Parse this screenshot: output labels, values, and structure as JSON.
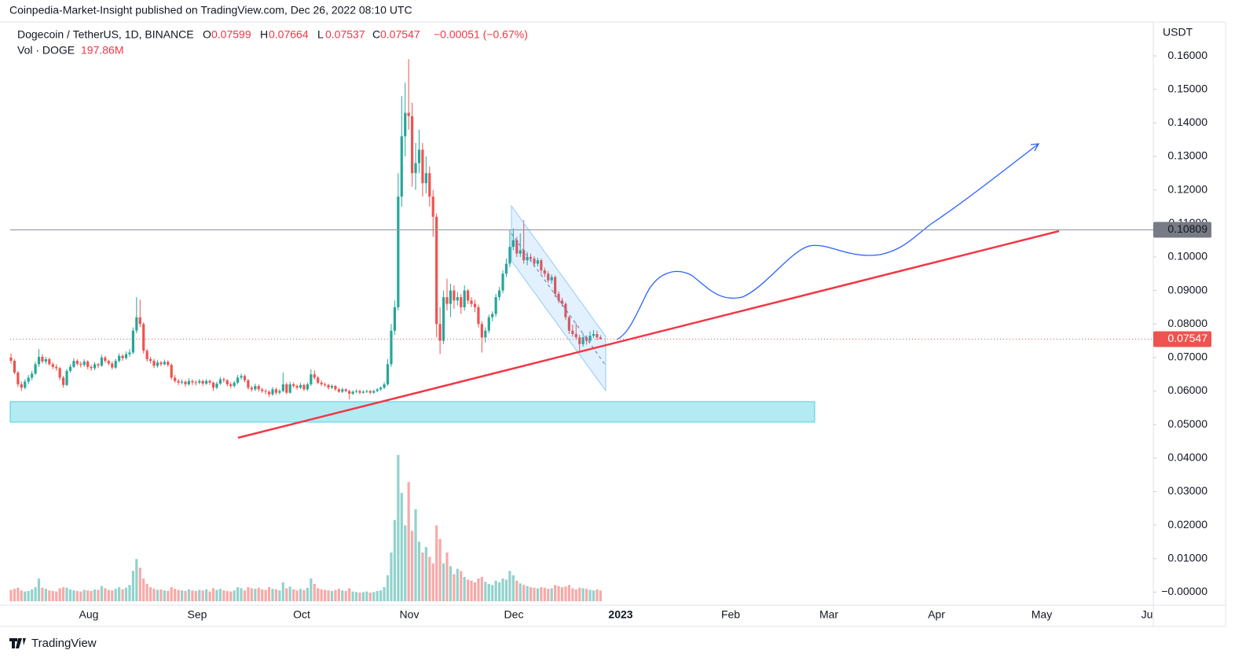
{
  "header": {
    "publisher": "Coinpedia-Market-Insight published on TradingView.com, Dec 26, 2022 08:10 UTC",
    "footer": "TradingView"
  },
  "chart_data": {
    "type": "candlestick",
    "symbol": "Dogecoin / TetherUS, 1D, BINANCE",
    "open_label": "O",
    "high_label": "H",
    "low_label": "L",
    "close_label": "C",
    "change": "−0.00051 (−0.67%)",
    "volume_name": "Vol · DOGE",
    "volume_label": "197.86M",
    "y_unit": "USDT",
    "xtick_labels": [
      "Aug",
      "Sep",
      "Oct",
      "Nov",
      "Dec",
      "2023",
      "Feb",
      "Mar",
      "Apr",
      "May",
      "Ju"
    ],
    "ylim": [
      -0.0039,
      0.1701
    ],
    "yticks": [
      {
        "value": 0,
        "label": "−0.00000"
      },
      {
        "value": 0.01,
        "label": "0.01000"
      },
      {
        "value": 0.02,
        "label": "0.02000"
      },
      {
        "value": 0.03,
        "label": "0.03000"
      },
      {
        "value": 0.04,
        "label": "0.04000"
      },
      {
        "value": 0.05,
        "label": "0.05000"
      },
      {
        "value": 0.06,
        "label": "0.06000"
      },
      {
        "value": 0.07,
        "label": "0.07000"
      },
      {
        "value": 0.08,
        "label": "0.08000"
      },
      {
        "value": 0.09,
        "label": "0.09000"
      },
      {
        "value": 0.1,
        "label": "0.10000"
      },
      {
        "value": 0.11,
        "label": "0.11000"
      },
      {
        "value": 0.12,
        "label": "0.12000"
      },
      {
        "value": 0.13,
        "label": "0.13000"
      },
      {
        "value": 0.14,
        "label": "0.14000"
      },
      {
        "value": 0.15,
        "label": "0.15000"
      },
      {
        "value": 0.16,
        "label": "0.16000"
      }
    ],
    "horizontal_line": 0.10809,
    "up_color": "#26a69a",
    "down_color": "#ef5350",
    "volume_lim": [
      0,
      2800
    ],
    "ohlc": [
      [
        0.07,
        0.0712,
        0.0682,
        0.069
      ],
      [
        0.069,
        0.0695,
        0.065,
        0.0655
      ],
      [
        0.0655,
        0.066,
        0.0612,
        0.062
      ],
      [
        0.062,
        0.0628,
        0.06,
        0.061
      ],
      [
        0.061,
        0.0635,
        0.0605,
        0.0628
      ],
      [
        0.0628,
        0.0648,
        0.062,
        0.064
      ],
      [
        0.064,
        0.066,
        0.0632,
        0.0652
      ],
      [
        0.0652,
        0.0688,
        0.0648,
        0.068
      ],
      [
        0.068,
        0.0725,
        0.0672,
        0.0702
      ],
      [
        0.0702,
        0.071,
        0.0682,
        0.0688
      ],
      [
        0.0688,
        0.0702,
        0.068,
        0.0695
      ],
      [
        0.0695,
        0.07,
        0.0675,
        0.068
      ],
      [
        0.068,
        0.0686,
        0.0665,
        0.0672
      ],
      [
        0.0672,
        0.068,
        0.066,
        0.0668
      ],
      [
        0.0668,
        0.0672,
        0.0632,
        0.064
      ],
      [
        0.064,
        0.0645,
        0.061,
        0.0618
      ],
      [
        0.0618,
        0.0666,
        0.0615,
        0.066
      ],
      [
        0.066,
        0.068,
        0.0655,
        0.0672
      ],
      [
        0.0672,
        0.0698,
        0.0668,
        0.069
      ],
      [
        0.069,
        0.0695,
        0.0675,
        0.0681
      ],
      [
        0.0681,
        0.0688,
        0.067,
        0.0678
      ],
      [
        0.0678,
        0.0695,
        0.0672,
        0.0688
      ],
      [
        0.0688,
        0.0692,
        0.0665,
        0.0672
      ],
      [
        0.0672,
        0.0678,
        0.066,
        0.0668
      ],
      [
        0.0668,
        0.0686,
        0.0662,
        0.068
      ],
      [
        0.068,
        0.0684,
        0.0668,
        0.0676
      ],
      [
        0.0676,
        0.0708,
        0.0672,
        0.07
      ],
      [
        0.07,
        0.0705,
        0.0684,
        0.069
      ],
      [
        0.069,
        0.0694,
        0.0676,
        0.0682
      ],
      [
        0.0682,
        0.0688,
        0.0664,
        0.067
      ],
      [
        0.067,
        0.0696,
        0.0666,
        0.069
      ],
      [
        0.069,
        0.0712,
        0.0685,
        0.0705
      ],
      [
        0.0705,
        0.071,
        0.069,
        0.0698
      ],
      [
        0.0698,
        0.0718,
        0.0694,
        0.071
      ],
      [
        0.071,
        0.0725,
        0.0702,
        0.0715
      ],
      [
        0.0715,
        0.079,
        0.071,
        0.078
      ],
      [
        0.078,
        0.088,
        0.0772,
        0.082
      ],
      [
        0.082,
        0.0872,
        0.079,
        0.08
      ],
      [
        0.08,
        0.0805,
        0.0712,
        0.072
      ],
      [
        0.072,
        0.0726,
        0.0688,
        0.0695
      ],
      [
        0.0695,
        0.0702,
        0.0682,
        0.069
      ],
      [
        0.069,
        0.0696,
        0.0668,
        0.0675
      ],
      [
        0.0675,
        0.0692,
        0.067,
        0.0685
      ],
      [
        0.0685,
        0.069,
        0.0674,
        0.068
      ],
      [
        0.068,
        0.0694,
        0.0676,
        0.0687
      ],
      [
        0.0687,
        0.0692,
        0.0672,
        0.0678
      ],
      [
        0.0678,
        0.0682,
        0.0634,
        0.064
      ],
      [
        0.064,
        0.0648,
        0.0624,
        0.063
      ],
      [
        0.063,
        0.0636,
        0.0618,
        0.0625
      ],
      [
        0.0625,
        0.0635,
        0.062,
        0.0628
      ],
      [
        0.0628,
        0.0632,
        0.0612,
        0.062
      ],
      [
        0.062,
        0.0638,
        0.0616,
        0.063
      ],
      [
        0.063,
        0.0634,
        0.0618,
        0.0626
      ],
      [
        0.0626,
        0.0632,
        0.0616,
        0.0625
      ],
      [
        0.0625,
        0.0636,
        0.062,
        0.063
      ],
      [
        0.063,
        0.0634,
        0.0615,
        0.0622
      ],
      [
        0.0622,
        0.0636,
        0.0618,
        0.063
      ],
      [
        0.063,
        0.0634,
        0.0618,
        0.0625
      ],
      [
        0.0625,
        0.0628,
        0.06,
        0.061
      ],
      [
        0.061,
        0.0628,
        0.0605,
        0.0622
      ],
      [
        0.0622,
        0.0642,
        0.0618,
        0.0635
      ],
      [
        0.0635,
        0.064,
        0.0625,
        0.0632
      ],
      [
        0.0632,
        0.0636,
        0.0614,
        0.062
      ],
      [
        0.062,
        0.0626,
        0.0608,
        0.0615
      ],
      [
        0.0615,
        0.063,
        0.061,
        0.0625
      ],
      [
        0.0625,
        0.0648,
        0.062,
        0.064
      ],
      [
        0.064,
        0.0652,
        0.0634,
        0.0645
      ],
      [
        0.0645,
        0.065,
        0.0626,
        0.0632
      ],
      [
        0.0632,
        0.0636,
        0.0604,
        0.061
      ],
      [
        0.061,
        0.0615,
        0.0598,
        0.0605
      ],
      [
        0.0605,
        0.0622,
        0.06,
        0.0615
      ],
      [
        0.0615,
        0.062,
        0.0598,
        0.0605
      ],
      [
        0.0605,
        0.061,
        0.0594,
        0.06
      ],
      [
        0.06,
        0.0606,
        0.059,
        0.0598
      ],
      [
        0.0598,
        0.0602,
        0.0582,
        0.059
      ],
      [
        0.059,
        0.0612,
        0.0586,
        0.0605
      ],
      [
        0.0605,
        0.061,
        0.0588,
        0.0595
      ],
      [
        0.0595,
        0.0606,
        0.059,
        0.06
      ],
      [
        0.06,
        0.0655,
        0.0596,
        0.062
      ],
      [
        0.062,
        0.0625,
        0.059,
        0.0595
      ],
      [
        0.0595,
        0.0628,
        0.0592,
        0.062
      ],
      [
        0.062,
        0.0626,
        0.061,
        0.0615
      ],
      [
        0.0615,
        0.062,
        0.0604,
        0.061
      ],
      [
        0.061,
        0.0624,
        0.0606,
        0.0618
      ],
      [
        0.0618,
        0.0622,
        0.06,
        0.0605
      ],
      [
        0.0605,
        0.0626,
        0.06,
        0.062
      ],
      [
        0.062,
        0.0665,
        0.0615,
        0.065
      ],
      [
        0.065,
        0.0662,
        0.0634,
        0.064
      ],
      [
        0.064,
        0.0645,
        0.062,
        0.0625
      ],
      [
        0.0625,
        0.0632,
        0.0615,
        0.062
      ],
      [
        0.062,
        0.0626,
        0.0612,
        0.0618
      ],
      [
        0.0618,
        0.0622,
        0.0604,
        0.061
      ],
      [
        0.061,
        0.062,
        0.0606,
        0.0615
      ],
      [
        0.0615,
        0.0618,
        0.06,
        0.0605
      ],
      [
        0.0605,
        0.061,
        0.0594,
        0.0598
      ],
      [
        0.0598,
        0.061,
        0.0594,
        0.0605
      ],
      [
        0.0605,
        0.0608,
        0.0596,
        0.06
      ],
      [
        0.06,
        0.0604,
        0.0575,
        0.0592
      ],
      [
        0.0592,
        0.0602,
        0.0588,
        0.0598
      ],
      [
        0.0598,
        0.0605,
        0.0594,
        0.06
      ],
      [
        0.06,
        0.0604,
        0.059,
        0.0595
      ],
      [
        0.0595,
        0.0602,
        0.0592,
        0.0598
      ],
      [
        0.0598,
        0.0604,
        0.0594,
        0.06
      ],
      [
        0.06,
        0.0603,
        0.059,
        0.0595
      ],
      [
        0.0595,
        0.0604,
        0.0592,
        0.06
      ],
      [
        0.06,
        0.0608,
        0.0596,
        0.0605
      ],
      [
        0.0605,
        0.0614,
        0.06,
        0.061
      ],
      [
        0.061,
        0.0626,
        0.0606,
        0.062
      ],
      [
        0.062,
        0.0695,
        0.0616,
        0.068
      ],
      [
        0.068,
        0.08,
        0.0672,
        0.078
      ],
      [
        0.078,
        0.087,
        0.0768,
        0.085
      ],
      [
        0.085,
        0.125,
        0.084,
        0.118
      ],
      [
        0.118,
        0.148,
        0.115,
        0.136
      ],
      [
        0.136,
        0.152,
        0.13,
        0.143
      ],
      [
        0.143,
        0.159,
        0.138,
        0.142
      ],
      [
        0.142,
        0.146,
        0.121,
        0.125
      ],
      [
        0.125,
        0.134,
        0.12,
        0.128
      ],
      [
        0.128,
        0.138,
        0.125,
        0.132
      ],
      [
        0.132,
        0.134,
        0.118,
        0.122
      ],
      [
        0.122,
        0.13,
        0.119,
        0.125
      ],
      [
        0.125,
        0.127,
        0.115,
        0.118
      ],
      [
        0.118,
        0.12,
        0.106,
        0.112
      ],
      [
        0.112,
        0.113,
        0.076,
        0.08
      ],
      [
        0.08,
        0.085,
        0.071,
        0.075
      ],
      [
        0.075,
        0.09,
        0.074,
        0.088
      ],
      [
        0.088,
        0.0935,
        0.084,
        0.086
      ],
      [
        0.086,
        0.092,
        0.082,
        0.09
      ],
      [
        0.09,
        0.0915,
        0.0845,
        0.087
      ],
      [
        0.087,
        0.0895,
        0.0855,
        0.088
      ],
      [
        0.088,
        0.089,
        0.083,
        0.085
      ],
      [
        0.085,
        0.0915,
        0.084,
        0.09
      ],
      [
        0.09,
        0.0905,
        0.086,
        0.087
      ],
      [
        0.087,
        0.088,
        0.085,
        0.086
      ],
      [
        0.086,
        0.0872,
        0.0835,
        0.085
      ],
      [
        0.085,
        0.0858,
        0.079,
        0.08
      ],
      [
        0.08,
        0.0808,
        0.0715,
        0.076
      ],
      [
        0.076,
        0.079,
        0.0745,
        0.078
      ],
      [
        0.078,
        0.0828,
        0.0772,
        0.082
      ],
      [
        0.082,
        0.0838,
        0.0808,
        0.083
      ],
      [
        0.083,
        0.089,
        0.0822,
        0.088
      ],
      [
        0.088,
        0.091,
        0.087,
        0.09
      ],
      [
        0.09,
        0.096,
        0.0892,
        0.095
      ],
      [
        0.095,
        0.0995,
        0.094,
        0.098
      ],
      [
        0.098,
        0.108,
        0.097,
        0.103
      ],
      [
        0.103,
        0.1085,
        0.102,
        0.105
      ],
      [
        0.105,
        0.106,
        0.1,
        0.101
      ],
      [
        0.101,
        0.107,
        0.1,
        0.102
      ],
      [
        0.102,
        0.111,
        0.098,
        0.099
      ],
      [
        0.099,
        0.1015,
        0.0975,
        0.1
      ],
      [
        0.1,
        0.101,
        0.0985,
        0.0995
      ],
      [
        0.0995,
        0.1002,
        0.097,
        0.098
      ],
      [
        0.098,
        0.0998,
        0.0972,
        0.099
      ],
      [
        0.099,
        0.0995,
        0.095,
        0.096
      ],
      [
        0.096,
        0.0968,
        0.094,
        0.095
      ],
      [
        0.095,
        0.0958,
        0.0922,
        0.093
      ],
      [
        0.093,
        0.0948,
        0.092,
        0.094
      ],
      [
        0.094,
        0.0945,
        0.088,
        0.089
      ],
      [
        0.089,
        0.0898,
        0.0862,
        0.087
      ],
      [
        0.087,
        0.0878,
        0.0852,
        0.086
      ],
      [
        0.086,
        0.0865,
        0.0812,
        0.082
      ],
      [
        0.082,
        0.0825,
        0.077,
        0.078
      ],
      [
        0.078,
        0.0798,
        0.0762,
        0.077
      ],
      [
        0.077,
        0.0802,
        0.0752,
        0.076
      ],
      [
        0.076,
        0.0768,
        0.0715,
        0.074
      ],
      [
        0.074,
        0.0772,
        0.0732,
        0.076
      ],
      [
        0.076,
        0.0766,
        0.0738,
        0.075
      ],
      [
        0.075,
        0.0778,
        0.0745,
        0.0765
      ],
      [
        0.0765,
        0.0782,
        0.0758,
        0.077
      ],
      [
        0.077,
        0.078,
        0.0752,
        0.076
      ],
      [
        0.07599,
        0.07664,
        0.07537,
        0.07547
      ]
    ],
    "volume": [
      210,
      230,
      250,
      200,
      180,
      190,
      220,
      260,
      420,
      250,
      230,
      200,
      190,
      180,
      240,
      260,
      250,
      220,
      200,
      190,
      180,
      210,
      200,
      190,
      220,
      210,
      280,
      240,
      210,
      200,
      230,
      260,
      220,
      250,
      300,
      560,
      780,
      620,
      420,
      320,
      260,
      230,
      210,
      220,
      200,
      190,
      260,
      230,
      210,
      200,
      190,
      220,
      200,
      190,
      210,
      200,
      220,
      180,
      240,
      210,
      230,
      200,
      190,
      180,
      200,
      260,
      240,
      200,
      260,
      240,
      230,
      250,
      220,
      210,
      260,
      230,
      220,
      200,
      350,
      240,
      270,
      220,
      200,
      230,
      210,
      250,
      420,
      320,
      240,
      220,
      210,
      200,
      190,
      210,
      230,
      200,
      190,
      240,
      180,
      170,
      160,
      170,
      180,
      160,
      170,
      190,
      200,
      260,
      480,
      900,
      1500,
      2700,
      2000,
      1400,
      2200,
      1300,
      1700,
      1100,
      900,
      1000,
      820,
      700,
      1400,
      1150,
      700,
      900,
      650,
      500,
      600,
      560,
      450,
      400,
      380,
      350,
      420,
      450,
      360,
      320,
      300,
      380,
      350,
      420,
      400,
      560,
      480,
      380,
      330,
      300,
      280,
      260,
      250,
      240,
      260,
      250,
      230,
      240,
      300,
      280,
      260,
      270,
      300,
      240,
      220,
      250,
      240,
      230,
      210,
      200,
      220,
      197.86
    ]
  }
}
